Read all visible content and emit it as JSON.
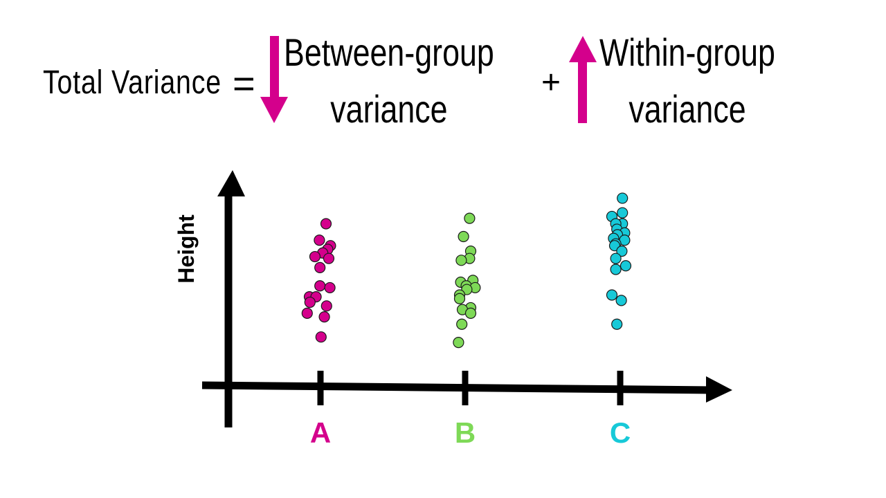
{
  "equation": {
    "total_label": "Total Variance",
    "equals": "=",
    "between_line1": "Between-group",
    "between_line2": "variance",
    "plus": "+",
    "within_line1": "Within-group",
    "within_line2": "variance",
    "down_arrow_icon": "arrow-down-icon",
    "up_arrow_icon": "arrow-up-icon",
    "arrow_color": "#d4008c"
  },
  "chart_data": {
    "type": "scatter",
    "ylabel": "Height",
    "categories": [
      "A",
      "B",
      "C"
    ],
    "category_colors": [
      "#d4008c",
      "#7ed957",
      "#17c9d8"
    ],
    "ylim": [
      0,
      100
    ],
    "series": [
      {
        "name": "A",
        "points": [
          {
            "jitter": 0.1,
            "y": 82
          },
          {
            "jitter": -0.02,
            "y": 73
          },
          {
            "jitter": 0.18,
            "y": 70
          },
          {
            "jitter": 0.13,
            "y": 68
          },
          {
            "jitter": 0.04,
            "y": 66
          },
          {
            "jitter": -0.1,
            "y": 64
          },
          {
            "jitter": 0.15,
            "y": 63
          },
          {
            "jitter": -0.01,
            "y": 58
          },
          {
            "jitter": -0.01,
            "y": 48
          },
          {
            "jitter": 0.17,
            "y": 47
          },
          {
            "jitter": -0.2,
            "y": 42
          },
          {
            "jitter": -0.08,
            "y": 42
          },
          {
            "jitter": -0.19,
            "y": 39
          },
          {
            "jitter": 0.11,
            "y": 37
          },
          {
            "jitter": -0.24,
            "y": 33
          },
          {
            "jitter": 0.07,
            "y": 31
          },
          {
            "jitter": 0.01,
            "y": 20
          }
        ]
      },
      {
        "name": "B",
        "points": [
          {
            "jitter": 0.08,
            "y": 85
          },
          {
            "jitter": -0.03,
            "y": 75
          },
          {
            "jitter": 0.1,
            "y": 67
          },
          {
            "jitter": 0.08,
            "y": 63
          },
          {
            "jitter": -0.07,
            "y": 62
          },
          {
            "jitter": 0.14,
            "y": 51
          },
          {
            "jitter": -0.08,
            "y": 50
          },
          {
            "jitter": 0.02,
            "y": 48
          },
          {
            "jitter": 0.18,
            "y": 47
          },
          {
            "jitter": 0.03,
            "y": 46
          },
          {
            "jitter": -0.1,
            "y": 43
          },
          {
            "jitter": -0.1,
            "y": 41
          },
          {
            "jitter": 0.1,
            "y": 36
          },
          {
            "jitter": -0.05,
            "y": 35
          },
          {
            "jitter": 0.1,
            "y": 33
          },
          {
            "jitter": -0.06,
            "y": 27
          },
          {
            "jitter": -0.12,
            "y": 17
          }
        ]
      },
      {
        "name": "C",
        "points": [
          {
            "jitter": 0.04,
            "y": 96
          },
          {
            "jitter": 0.04,
            "y": 88
          },
          {
            "jitter": -0.15,
            "y": 86
          },
          {
            "jitter": 0.04,
            "y": 82
          },
          {
            "jitter": -0.08,
            "y": 82
          },
          {
            "jitter": -0.06,
            "y": 79
          },
          {
            "jitter": 0.08,
            "y": 77
          },
          {
            "jitter": -0.05,
            "y": 76
          },
          {
            "jitter": -0.12,
            "y": 74
          },
          {
            "jitter": 0.08,
            "y": 73
          },
          {
            "jitter": -0.08,
            "y": 71
          },
          {
            "jitter": -0.1,
            "y": 70
          },
          {
            "jitter": 0.03,
            "y": 67
          },
          {
            "jitter": -0.08,
            "y": 63
          },
          {
            "jitter": 0.1,
            "y": 59
          },
          {
            "jitter": -0.08,
            "y": 57
          },
          {
            "jitter": -0.15,
            "y": 43
          },
          {
            "jitter": 0.02,
            "y": 40
          },
          {
            "jitter": -0.06,
            "y": 27
          }
        ]
      }
    ]
  }
}
